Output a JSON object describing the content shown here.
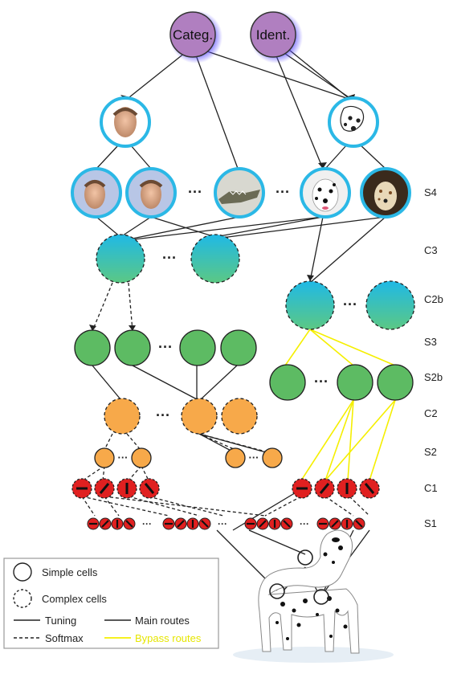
{
  "top_nodes": [
    {
      "label": "Categ."
    },
    {
      "label": "Ident."
    }
  ],
  "layer_labels": [
    "S4",
    "C3",
    "C2b",
    "S3",
    "S2b",
    "C2",
    "S2",
    "C1",
    "S1"
  ],
  "legend": {
    "simple": "Simple cells",
    "complex": "Complex cells",
    "tuning": "Tuning",
    "softmax": "Softmax",
    "main": "Main routes",
    "bypass": "Bypass routes"
  },
  "colors": {
    "top": "#b07fc0",
    "s4_ring": "#2bb8e6",
    "green": "#5dbb63",
    "orange": "#f7a94a",
    "red": "#e02020",
    "bypass": "#f5ef00",
    "c3_top": "#1fb9e6",
    "c3_bottom": "#55c78a"
  }
}
